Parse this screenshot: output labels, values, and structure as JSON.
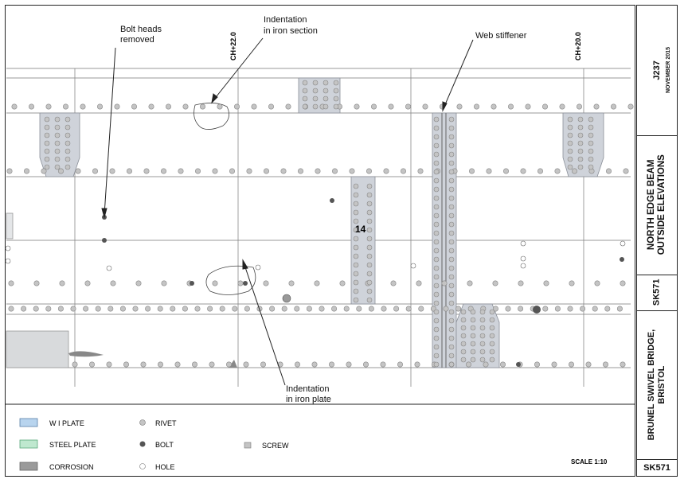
{
  "annotations": {
    "bolt_heads": [
      "Bolt heads",
      "removed"
    ],
    "indent_section": [
      "Indentation",
      "in iron section"
    ],
    "web_stiffener": "Web stiffener",
    "indent_plate": [
      "Indentation",
      "in iron plate"
    ]
  },
  "chainage": {
    "ch22": "CH+22.0",
    "ch20": "CH+20.0"
  },
  "plate_number": "14",
  "legend": {
    "wi_plate": "W I PLATE",
    "steel_plate": "STEEL PLATE",
    "corrosion": "CORROSION",
    "rivet": "RIVET",
    "bolt": "BOLT",
    "hole": "HOLE",
    "screw": "SCREW"
  },
  "scale": "SCALE 1:10",
  "title_block": {
    "job": "J237",
    "date": "NOVEMBER 2015",
    "title": [
      "NORTH EDGE BEAM",
      "OUTSIDE ELEVATIONS"
    ],
    "sheet": "SK571",
    "project": [
      "BRUNEL SWIVEL BRIDGE,",
      "BRISTOL"
    ],
    "sheet_bottom": "SK571"
  },
  "colors": {
    "wi_plate": "#b8d4ee",
    "steel_plate": "#bfe8cf",
    "corrosion": "#9a9a9a",
    "plate_fill": "#cfd3da",
    "rivet": "#c4c4c4",
    "bolt": "#555555"
  }
}
